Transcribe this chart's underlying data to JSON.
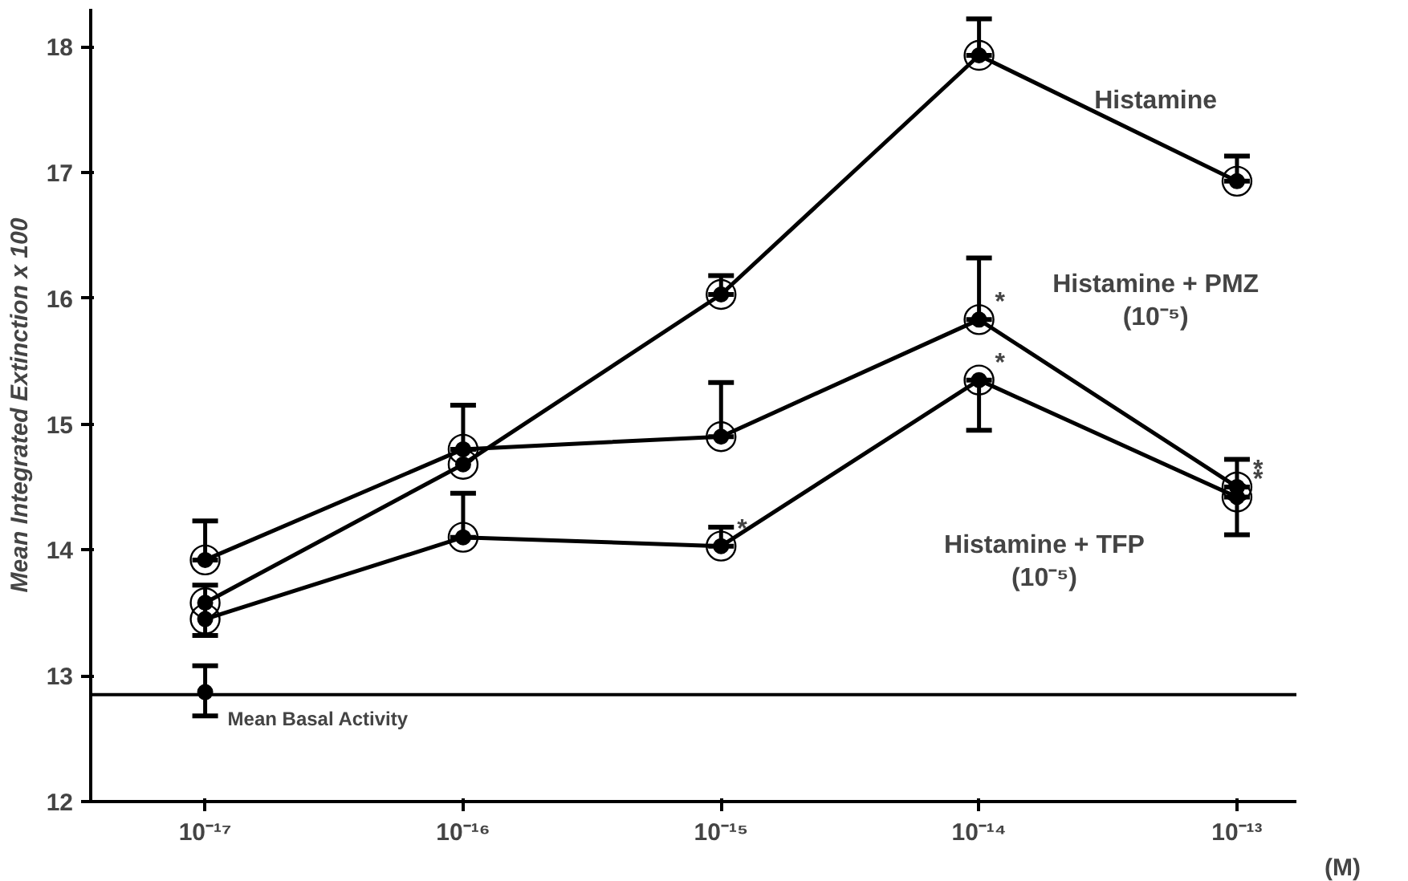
{
  "chart_data": {
    "type": "line",
    "ylabel": "Mean Integrated Extinction x 100",
    "xlabel": "(M)",
    "log": "x",
    "x": [
      1e-17,
      1e-16,
      1e-15,
      1e-14,
      1e-13
    ],
    "xlim": [
      3.6e-18,
      1.7e-13
    ],
    "ylim": [
      12,
      18.3
    ],
    "xticks": [
      {
        "value": 1e-17,
        "label": "10⁻¹⁷"
      },
      {
        "value": 1e-16,
        "label": "10⁻¹⁶"
      },
      {
        "value": 1e-15,
        "label": "10⁻¹⁵"
      },
      {
        "value": 1e-14,
        "label": "10⁻¹⁴"
      },
      {
        "value": 1e-13,
        "label": "10⁻¹³"
      }
    ],
    "yticks": [
      12,
      13,
      14,
      15,
      16,
      17,
      18
    ],
    "grid": false,
    "marker": "circle",
    "line_style": "solid",
    "series": [
      {
        "name": "Histamine",
        "color": "#000000",
        "values": [
          13.58,
          14.68,
          16.03,
          17.93,
          16.93
        ],
        "errors": [
          null,
          null,
          [
            16.03,
            16.18
          ],
          [
            17.93,
            18.22
          ],
          [
            16.93,
            17.13
          ]
        ]
      },
      {
        "name": "Histamine + PMZ\n(10⁻⁵)",
        "color": "#000000",
        "values": [
          13.92,
          14.8,
          14.9,
          15.83,
          14.5
        ],
        "errors": [
          [
            13.92,
            14.23
          ],
          [
            14.8,
            15.15
          ],
          [
            14.9,
            15.33
          ],
          [
            15.83,
            16.32
          ],
          [
            14.5,
            14.72
          ]
        ]
      },
      {
        "name": "Histamine + TFP\n(10⁻⁵)",
        "color": "#000000",
        "values": [
          13.45,
          14.1,
          14.03,
          15.35,
          14.42
        ],
        "errors": [
          [
            13.32,
            13.72
          ],
          [
            14.1,
            14.45
          ],
          [
            14.03,
            14.18
          ],
          [
            14.95,
            15.35
          ],
          [
            14.12,
            14.42
          ]
        ]
      },
      {
        "type": "scatter",
        "color": "#000000",
        "x": [
          1e-17
        ],
        "values": [
          12.87
        ],
        "errors": [
          [
            12.68,
            13.08
          ]
        ]
      }
    ],
    "ref_lines": [
      {
        "axis": "y",
        "value": 12.85,
        "label": "Mean Basal Activity",
        "color": "#000000",
        "line_style": "solid"
      }
    ],
    "annotations": [
      {
        "text": "*",
        "x": 1e-15,
        "y": 14.03
      },
      {
        "text": "*",
        "x": 1e-14,
        "y": 15.83
      },
      {
        "text": "*",
        "x": 1e-14,
        "y": 15.35
      },
      {
        "text": "*",
        "x": 1e-13,
        "y": 14.5
      },
      {
        "text": "*",
        "x": 1e-13,
        "y": 14.42
      }
    ]
  }
}
